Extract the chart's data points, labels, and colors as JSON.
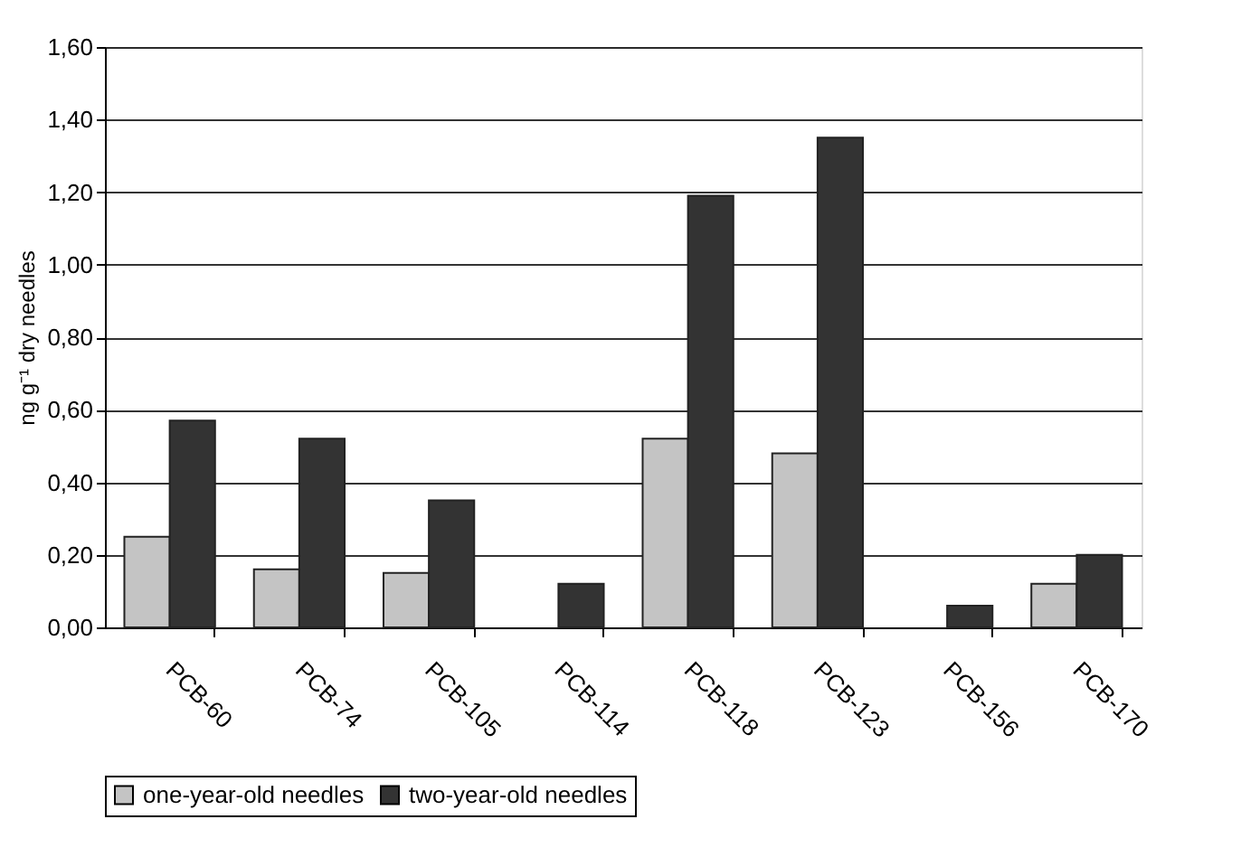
{
  "chart_data": {
    "type": "bar",
    "ylabel": "ng g⁻¹ dry needles",
    "categories": [
      "PCB-60",
      "PCB-74",
      "PCB-105",
      "PCB-114",
      "PCB-118",
      "PCB-123",
      "PCB-156",
      "PCB-170"
    ],
    "series": [
      {
        "name": "one-year-old needles",
        "color": "#c4c4c4",
        "values": [
          0.25,
          0.16,
          0.15,
          null,
          0.52,
          0.48,
          null,
          0.12
        ]
      },
      {
        "name": "two-year-old needles",
        "color": "#333333",
        "values": [
          0.57,
          0.52,
          0.35,
          0.12,
          1.19,
          1.35,
          0.06,
          0.2
        ]
      }
    ],
    "ylim": [
      0,
      1.6
    ],
    "yticks": [
      {
        "value": 0,
        "label": "0,00"
      },
      {
        "value": 0.2,
        "label": "0,20"
      },
      {
        "value": 0.4,
        "label": "0,40"
      },
      {
        "value": 0.6,
        "label": "0,60"
      },
      {
        "value": 0.8,
        "label": "0,80"
      },
      {
        "value": 1.0,
        "label": "1,00"
      },
      {
        "value": 1.2,
        "label": "1,20"
      },
      {
        "value": 1.4,
        "label": "1,40"
      },
      {
        "value": 1.6,
        "label": "1,60"
      }
    ],
    "grid": "y",
    "legend": "bottom"
  }
}
